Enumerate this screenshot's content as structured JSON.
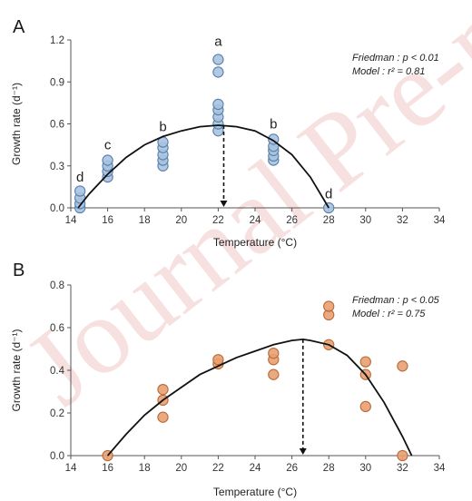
{
  "watermark": "Journal Pre-proof",
  "chart_data": [
    {
      "type": "scatter",
      "panel_label": "A",
      "xlabel": "Temperature (°C)",
      "ylabel": "Growth rate (d⁻¹)",
      "xlim": [
        14,
        34
      ],
      "ylim": [
        0,
        1.2
      ],
      "xticks": [
        14,
        16,
        18,
        20,
        22,
        24,
        26,
        28,
        30,
        32,
        34
      ],
      "yticks": [
        0.0,
        0.3,
        0.6,
        0.9,
        1.2
      ],
      "ytick_labels": [
        "0.0",
        "0.3",
        "0.6",
        "0.9",
        "1.2"
      ],
      "stats_lines": [
        "Friedman : p < 0.01",
        "Model : r² = 0.81"
      ],
      "marker_color": "#a9c3e0",
      "marker_edge": "#5a7fa8",
      "points": [
        {
          "x": 14.5,
          "y": 0.0
        },
        {
          "x": 14.5,
          "y": 0.03
        },
        {
          "x": 14.5,
          "y": 0.07
        },
        {
          "x": 14.5,
          "y": 0.12
        },
        {
          "x": 16,
          "y": 0.22
        },
        {
          "x": 16,
          "y": 0.26
        },
        {
          "x": 16,
          "y": 0.3
        },
        {
          "x": 16,
          "y": 0.34
        },
        {
          "x": 19,
          "y": 0.3
        },
        {
          "x": 19,
          "y": 0.34
        },
        {
          "x": 19,
          "y": 0.38
        },
        {
          "x": 19,
          "y": 0.43
        },
        {
          "x": 19,
          "y": 0.47
        },
        {
          "x": 22,
          "y": 0.55
        },
        {
          "x": 22,
          "y": 0.6
        },
        {
          "x": 22,
          "y": 0.65
        },
        {
          "x": 22,
          "y": 0.7
        },
        {
          "x": 22,
          "y": 0.74
        },
        {
          "x": 22,
          "y": 0.97
        },
        {
          "x": 22,
          "y": 1.06
        },
        {
          "x": 25,
          "y": 0.34
        },
        {
          "x": 25,
          "y": 0.37
        },
        {
          "x": 25,
          "y": 0.41
        },
        {
          "x": 25,
          "y": 0.44
        },
        {
          "x": 25,
          "y": 0.49
        },
        {
          "x": 28,
          "y": 0.0
        }
      ],
      "significance_labels": [
        {
          "x": 14.5,
          "y": 0.13,
          "text": "d"
        },
        {
          "x": 16,
          "y": 0.36,
          "text": "c"
        },
        {
          "x": 19,
          "y": 0.49,
          "text": "b"
        },
        {
          "x": 22,
          "y": 1.1,
          "text": "a"
        },
        {
          "x": 25,
          "y": 0.51,
          "text": "b"
        },
        {
          "x": 28,
          "y": 0.01,
          "text": "d"
        }
      ],
      "model_curve": [
        [
          14.4,
          0.0
        ],
        [
          15,
          0.1
        ],
        [
          16,
          0.24
        ],
        [
          17,
          0.36
        ],
        [
          18,
          0.45
        ],
        [
          19,
          0.51
        ],
        [
          20,
          0.55
        ],
        [
          21,
          0.58
        ],
        [
          22,
          0.59
        ],
        [
          23,
          0.58
        ],
        [
          24,
          0.55
        ],
        [
          25,
          0.48
        ],
        [
          26,
          0.38
        ],
        [
          27,
          0.22
        ],
        [
          28,
          0.0
        ]
      ],
      "optimum_x": 22.3
    },
    {
      "type": "scatter",
      "panel_label": "B",
      "xlabel": "Temperature (°C)",
      "ylabel": "Growth rate (d⁻¹)",
      "xlim": [
        14,
        34
      ],
      "ylim": [
        0,
        0.8
      ],
      "xticks": [
        14,
        16,
        18,
        20,
        22,
        24,
        26,
        28,
        30,
        32,
        34
      ],
      "yticks": [
        0.0,
        0.2,
        0.4,
        0.6,
        0.8
      ],
      "ytick_labels": [
        "0.0",
        "0.2",
        "0.4",
        "0.6",
        "0.8"
      ],
      "stats_lines": [
        "Friedman : p < 0.05",
        "Model : r² = 0.75"
      ],
      "marker_color": "#e8a070",
      "marker_edge": "#b86a3a",
      "points": [
        {
          "x": 16,
          "y": 0.0
        },
        {
          "x": 19,
          "y": 0.18
        },
        {
          "x": 19,
          "y": 0.26
        },
        {
          "x": 19,
          "y": 0.31
        },
        {
          "x": 22,
          "y": 0.43
        },
        {
          "x": 22,
          "y": 0.45
        },
        {
          "x": 25,
          "y": 0.38
        },
        {
          "x": 25,
          "y": 0.45
        },
        {
          "x": 25,
          "y": 0.48
        },
        {
          "x": 28,
          "y": 0.52
        },
        {
          "x": 28,
          "y": 0.66
        },
        {
          "x": 28,
          "y": 0.7
        },
        {
          "x": 30,
          "y": 0.23
        },
        {
          "x": 30,
          "y": 0.38
        },
        {
          "x": 30,
          "y": 0.44
        },
        {
          "x": 32,
          "y": 0.0
        },
        {
          "x": 32,
          "y": 0.42
        }
      ],
      "model_curve": [
        [
          16,
          0.0
        ],
        [
          17,
          0.1
        ],
        [
          18,
          0.19
        ],
        [
          19,
          0.26
        ],
        [
          20,
          0.32
        ],
        [
          21,
          0.38
        ],
        [
          22,
          0.42
        ],
        [
          23,
          0.46
        ],
        [
          24,
          0.49
        ],
        [
          25,
          0.52
        ],
        [
          26,
          0.54
        ],
        [
          26.6,
          0.545
        ],
        [
          27,
          0.54
        ],
        [
          28,
          0.52
        ],
        [
          29,
          0.47
        ],
        [
          30,
          0.38
        ],
        [
          31,
          0.25
        ],
        [
          32,
          0.09
        ],
        [
          32.5,
          0.0
        ]
      ],
      "optimum_x": 26.6
    }
  ]
}
